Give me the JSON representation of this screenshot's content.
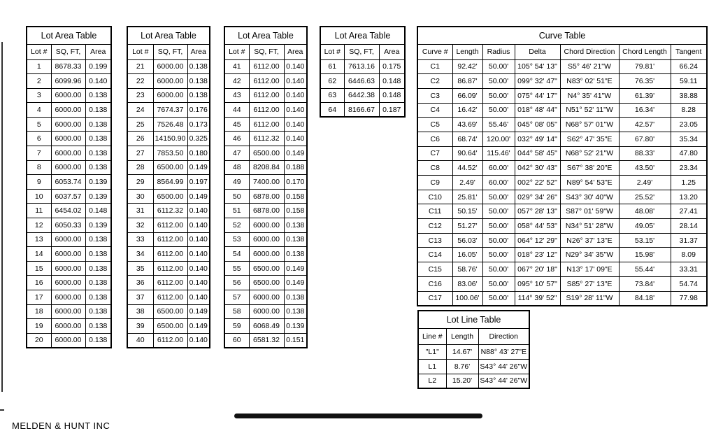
{
  "tables": [
    {
      "title": "Lot Area Table",
      "columns": [
        "Lot #",
        "SQ, FT,",
        "Area"
      ],
      "rows": [
        [
          "1",
          "8678.33",
          "0.199"
        ],
        [
          "2",
          "6099.96",
          "0.140"
        ],
        [
          "3",
          "6000.00",
          "0.138"
        ],
        [
          "4",
          "6000.00",
          "0.138"
        ],
        [
          "5",
          "6000.00",
          "0.138"
        ],
        [
          "6",
          "6000.00",
          "0.138"
        ],
        [
          "7",
          "6000.00",
          "0.138"
        ],
        [
          "8",
          "6000.00",
          "0.138"
        ],
        [
          "9",
          "6053.74",
          "0.139"
        ],
        [
          "10",
          "6037.57",
          "0.139"
        ],
        [
          "11",
          "6454.02",
          "0.148"
        ],
        [
          "12",
          "6050.33",
          "0.139"
        ],
        [
          "13",
          "6000.00",
          "0.138"
        ],
        [
          "14",
          "6000.00",
          "0.138"
        ],
        [
          "15",
          "6000.00",
          "0.138"
        ],
        [
          "16",
          "6000.00",
          "0.138"
        ],
        [
          "17",
          "6000.00",
          "0.138"
        ],
        [
          "18",
          "6000.00",
          "0.138"
        ],
        [
          "19",
          "6000.00",
          "0.138"
        ],
        [
          "20",
          "6000.00",
          "0.138"
        ]
      ]
    },
    {
      "title": "Lot Area Table",
      "columns": [
        "Lot #",
        "SQ, FT,",
        "Area"
      ],
      "rows": [
        [
          "21",
          "6000.00",
          "0.138"
        ],
        [
          "22",
          "6000.00",
          "0.138"
        ],
        [
          "23",
          "6000.00",
          "0.138"
        ],
        [
          "24",
          "7674.37",
          "0.176"
        ],
        [
          "25",
          "7526.48",
          "0.173"
        ],
        [
          "26",
          "14150.90",
          "0.325"
        ],
        [
          "27",
          "7853.50",
          "0.180"
        ],
        [
          "28",
          "6500.00",
          "0.149"
        ],
        [
          "29",
          "8564.99",
          "0.197"
        ],
        [
          "30",
          "6500.00",
          "0.149"
        ],
        [
          "31",
          "6112.32",
          "0.140"
        ],
        [
          "32",
          "6112.00",
          "0.140"
        ],
        [
          "33",
          "6112.00",
          "0.140"
        ],
        [
          "34",
          "6112.00",
          "0.140"
        ],
        [
          "35",
          "6112.00",
          "0.140"
        ],
        [
          "36",
          "6112.00",
          "0.140"
        ],
        [
          "37",
          "6112.00",
          "0.140"
        ],
        [
          "38",
          "6500.00",
          "0.149"
        ],
        [
          "39",
          "6500.00",
          "0.149"
        ],
        [
          "40",
          "6112.00",
          "0.140"
        ]
      ]
    },
    {
      "title": "Lot Area Table",
      "columns": [
        "Lot #",
        "SQ, FT,",
        "Area"
      ],
      "rows": [
        [
          "41",
          "6112.00",
          "0.140"
        ],
        [
          "42",
          "6112.00",
          "0.140"
        ],
        [
          "43",
          "6112.00",
          "0.140"
        ],
        [
          "44",
          "6112.00",
          "0.140"
        ],
        [
          "45",
          "6112.00",
          "0.140"
        ],
        [
          "46",
          "6112.32",
          "0.140"
        ],
        [
          "47",
          "6500.00",
          "0.149"
        ],
        [
          "48",
          "8208.84",
          "0.188"
        ],
        [
          "49",
          "7400.00",
          "0.170"
        ],
        [
          "50",
          "6878.00",
          "0.158"
        ],
        [
          "51",
          "6878.00",
          "0.158"
        ],
        [
          "52",
          "6000.00",
          "0.138"
        ],
        [
          "53",
          "6000.00",
          "0.138"
        ],
        [
          "54",
          "6000.00",
          "0.138"
        ],
        [
          "55",
          "6500.00",
          "0.149"
        ],
        [
          "56",
          "6500.00",
          "0.149"
        ],
        [
          "57",
          "6000.00",
          "0.138"
        ],
        [
          "58",
          "6000.00",
          "0.138"
        ],
        [
          "59",
          "6068.49",
          "0.139"
        ],
        [
          "60",
          "6581.32",
          "0.151"
        ]
      ]
    },
    {
      "title": "Lot Area Table",
      "columns": [
        "Lot #",
        "SQ, FT,",
        "Area"
      ],
      "rows": [
        [
          "61",
          "7613.16",
          "0.175"
        ],
        [
          "62",
          "6446.63",
          "0.148"
        ],
        [
          "63",
          "6442.38",
          "0.148"
        ],
        [
          "64",
          "8166.67",
          "0.187"
        ]
      ]
    },
    {
      "title": "Curve Table",
      "columns": [
        "Curve #",
        "Length",
        "Radius",
        "Delta",
        "Chord Direction",
        "Chord Length",
        "Tangent"
      ],
      "rows": [
        [
          "C1",
          "92.42'",
          "50.00'",
          "105° 54' 13\"",
          "S5° 46' 21\"W",
          "79.81'",
          "66.24"
        ],
        [
          "C2",
          "86.87'",
          "50.00'",
          "099° 32' 47\"",
          "N83° 02' 51\"E",
          "76.35'",
          "59.11"
        ],
        [
          "C3",
          "66.09'",
          "50.00'",
          "075° 44' 17\"",
          "N4° 35' 41\"W",
          "61.39'",
          "38.88"
        ],
        [
          "C4",
          "16.42'",
          "50.00'",
          "018° 48' 44\"",
          "N51° 52' 11\"W",
          "16.34'",
          "8.28"
        ],
        [
          "C5",
          "43.69'",
          "55.46'",
          "045° 08' 05\"",
          "N68° 57' 01\"W",
          "42.57'",
          "23.05"
        ],
        [
          "C6",
          "68.74'",
          "120.00'",
          "032° 49' 14\"",
          "S62° 47' 35\"E",
          "67.80'",
          "35.34"
        ],
        [
          "C7",
          "90.64'",
          "115.46'",
          "044° 58' 45\"",
          "N68° 52' 21\"W",
          "88.33'",
          "47.80"
        ],
        [
          "C8",
          "44.52'",
          "60.00'",
          "042° 30' 43\"",
          "S67° 38' 20\"E",
          "43.50'",
          "23.34"
        ],
        [
          "C9",
          "2.49'",
          "60.00'",
          "002° 22' 52\"",
          "N89° 54' 53\"E",
          "2.49'",
          "1.25"
        ],
        [
          "C10",
          "25.81'",
          "50.00'",
          "029° 34' 26\"",
          "S43° 30' 40\"W",
          "25.52'",
          "13.20"
        ],
        [
          "C11",
          "50.15'",
          "50.00'",
          "057° 28' 13\"",
          "S87° 01' 59\"W",
          "48.08'",
          "27.41"
        ],
        [
          "C12",
          "51.27'",
          "50.00'",
          "058° 44' 53\"",
          "N34° 51' 28\"W",
          "49.05'",
          "28.14"
        ],
        [
          "C13",
          "56.03'",
          "50.00'",
          "064° 12' 29\"",
          "N26° 37' 13\"E",
          "53.15'",
          "31.37"
        ],
        [
          "C14",
          "16.05'",
          "50.00'",
          "018° 23' 12\"",
          "N29° 34' 35\"W",
          "15.98'",
          "8.09"
        ],
        [
          "C15",
          "58.76'",
          "50.00'",
          "067° 20' 18\"",
          "N13° 17' 09\"E",
          "55.44'",
          "33.31"
        ],
        [
          "C16",
          "83.06'",
          "50.00'",
          "095° 10' 57\"",
          "S85° 27' 13\"E",
          "73.84'",
          "54.74"
        ],
        [
          "C17",
          "100.06'",
          "50.00'",
          "114° 39' 52\"",
          "S19° 28' 11\"W",
          "84.18'",
          "77.98"
        ]
      ]
    },
    {
      "title": "Lot Line Table",
      "columns": [
        "Line #",
        "Length",
        "Direction"
      ],
      "rows": [
        [
          "\"L1\"",
          "14.67'",
          "N88° 43' 27\"E"
        ],
        [
          "L1",
          "8.76'",
          "S43° 44' 26\"W"
        ],
        [
          "L2",
          "15.20'",
          "S43° 44' 26\"W"
        ]
      ]
    }
  ],
  "footer": "MELDEN & HUNT INC"
}
